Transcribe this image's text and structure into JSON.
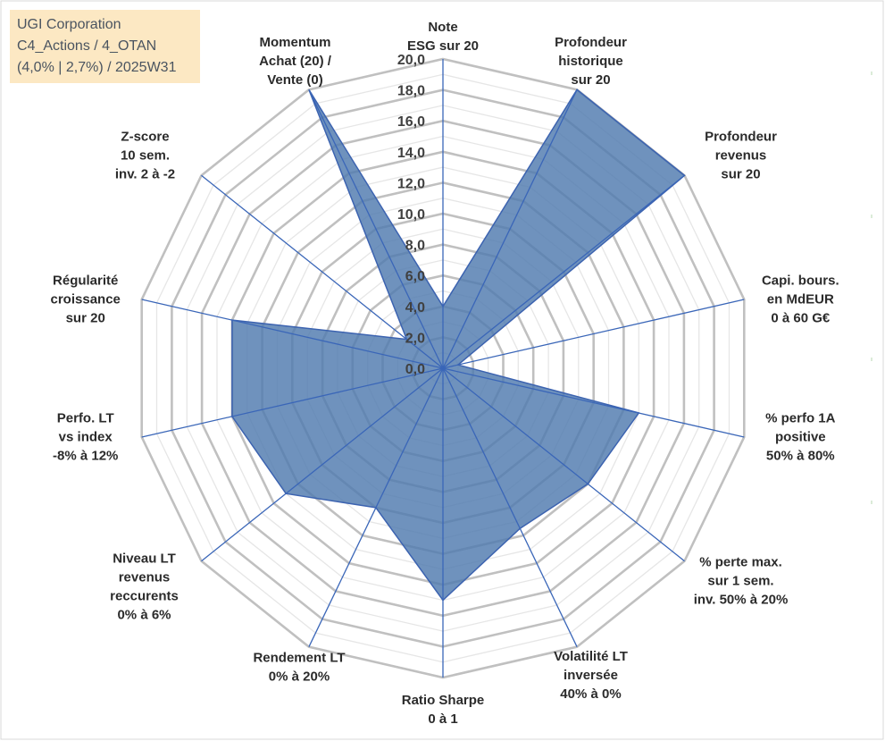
{
  "chart_data": {
    "type": "radar",
    "title_box": [
      "UGI Corporation",
      "C4_Actions / 4_OTAN",
      "(4,0% | 2,7%) / 2025W31"
    ],
    "rmin": 0,
    "rmax": 20,
    "tick_step": 2,
    "tick_labels": [
      "0,0",
      "2,0",
      "4,0",
      "6,0",
      "8,0",
      "10,0",
      "12,0",
      "14,0",
      "16,0",
      "18,0",
      "20,0"
    ],
    "minor_grid_step": 1,
    "axes": [
      {
        "label": [
          "Note",
          "ESG sur 20"
        ],
        "value": 4
      },
      {
        "label": [
          "Profondeur",
          "historique",
          "sur 20"
        ],
        "value": 20
      },
      {
        "label": [
          "Profondeur",
          "revenus",
          "sur 20"
        ],
        "value": 20
      },
      {
        "label": [
          "Capi. bours.",
          "en MdEUR",
          "0 à 60 G€"
        ],
        "value": 1
      },
      {
        "label": [
          "% perfo 1A",
          "positive",
          "50% à 80%"
        ],
        "value": 13
      },
      {
        "label": [
          "% perte max.",
          "sur 1 sem.",
          "inv. 50% à 20%"
        ],
        "value": 12
      },
      {
        "label": [
          "Volatilité LT",
          "inversée",
          "40% à 0%"
        ],
        "value": 11.5
      },
      {
        "label": [
          "Ratio Sharpe",
          "0 à 1"
        ],
        "value": 15
      },
      {
        "label": [
          "Rendement LT",
          "0% à 20%"
        ],
        "value": 10
      },
      {
        "label": [
          "Niveau LT",
          "revenus",
          "reccurents",
          "0% à 6%"
        ],
        "value": 13
      },
      {
        "label": [
          "Perfo. LT",
          "vs index",
          "-8% à 12%"
        ],
        "value": 14
      },
      {
        "label": [
          "Régularité",
          "croissance",
          "sur 20"
        ],
        "value": 14
      },
      {
        "label": [
          "Z-score",
          "10 sem.",
          "inv. 2 à -2"
        ],
        "value": 3
      },
      {
        "label": [
          "Momentum",
          "Achat (20) /",
          "Vente (0)"
        ],
        "value": 20
      }
    ],
    "series": [
      {
        "values": [
          4,
          20,
          20,
          1,
          13,
          12,
          11.5,
          15,
          10,
          13,
          14,
          14,
          3,
          20
        ]
      }
    ],
    "colors": {
      "fill": "#4f7aae",
      "stroke": "#3c63b0",
      "grid": "#c0c0c0",
      "spoke": "#3a66b8",
      "box": "#fce8c3"
    }
  }
}
